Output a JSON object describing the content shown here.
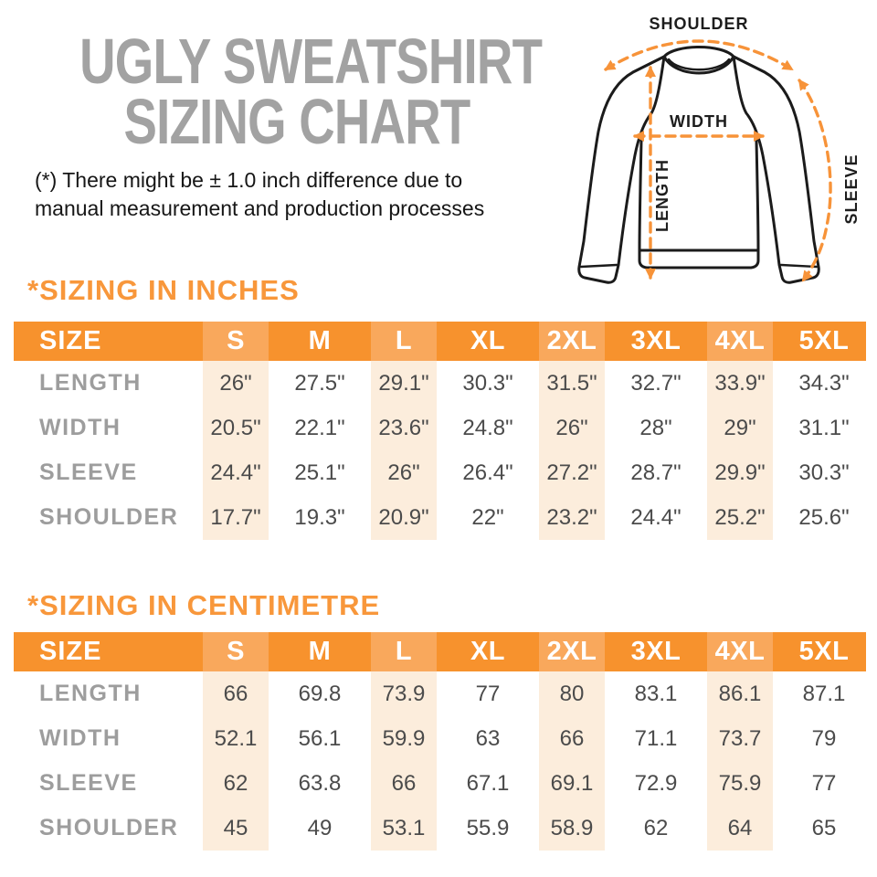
{
  "header": {
    "title_line1": "UGLY SWEATSHIRT",
    "title_line2": "SIZING CHART",
    "disclaimer_line1": "(*) There might be ± 1.0 inch difference due to",
    "disclaimer_line2": "manual measurement and production processes"
  },
  "diagram": {
    "labels": {
      "shoulder": "SHOULDER",
      "width": "WIDTH",
      "length": "LENGTH",
      "sleeve": "SLEEVE"
    }
  },
  "colors": {
    "accent_orange": "#F7922D",
    "header_stripe_orange": "#F9A85C",
    "column_tint_peach": "#FCEDDC",
    "heading_orange": "#F8973B",
    "arrow_orange": "#F79339",
    "title_gray": "#A2A2A2",
    "row_label_gray": "#9D9D9D",
    "value_gray": "#4B4B4B"
  },
  "tables": [
    {
      "heading": "*SIZING IN INCHES",
      "columns": [
        "SIZE",
        "S",
        "M",
        "L",
        "XL",
        "2XL",
        "3XL",
        "4XL",
        "5XL"
      ],
      "rows": [
        {
          "label": "LENGTH",
          "values": [
            "26\"",
            "27.5\"",
            "29.1\"",
            "30.3\"",
            "31.5\"",
            "32.7\"",
            "33.9\"",
            "34.3\""
          ]
        },
        {
          "label": "WIDTH",
          "values": [
            "20.5\"",
            "22.1\"",
            "23.6\"",
            "24.8\"",
            "26\"",
            "28\"",
            "29\"",
            "31.1\""
          ]
        },
        {
          "label": "SLEEVE",
          "values": [
            "24.4\"",
            "25.1\"",
            "26\"",
            "26.4\"",
            "27.2\"",
            "28.7\"",
            "29.9\"",
            "30.3\""
          ]
        },
        {
          "label": "SHOULDER",
          "values": [
            "17.7\"",
            "19.3\"",
            "20.9\"",
            "22\"",
            "23.2\"",
            "24.4\"",
            "25.2\"",
            "25.6\""
          ]
        }
      ]
    },
    {
      "heading": "*SIZING IN CENTIMETRE",
      "columns": [
        "SIZE",
        "S",
        "M",
        "L",
        "XL",
        "2XL",
        "3XL",
        "4XL",
        "5XL"
      ],
      "rows": [
        {
          "label": "LENGTH",
          "values": [
            "66",
            "69.8",
            "73.9",
            "77",
            "80",
            "83.1",
            "86.1",
            "87.1"
          ]
        },
        {
          "label": "WIDTH",
          "values": [
            "52.1",
            "56.1",
            "59.9",
            "63",
            "66",
            "71.1",
            "73.7",
            "79"
          ]
        },
        {
          "label": "SLEEVE",
          "values": [
            "62",
            "63.8",
            "66",
            "67.1",
            "69.1",
            "72.9",
            "75.9",
            "77"
          ]
        },
        {
          "label": "SHOULDER",
          "values": [
            "45",
            "49",
            "53.1",
            "55.9",
            "58.9",
            "62",
            "64",
            "65"
          ]
        }
      ]
    }
  ]
}
